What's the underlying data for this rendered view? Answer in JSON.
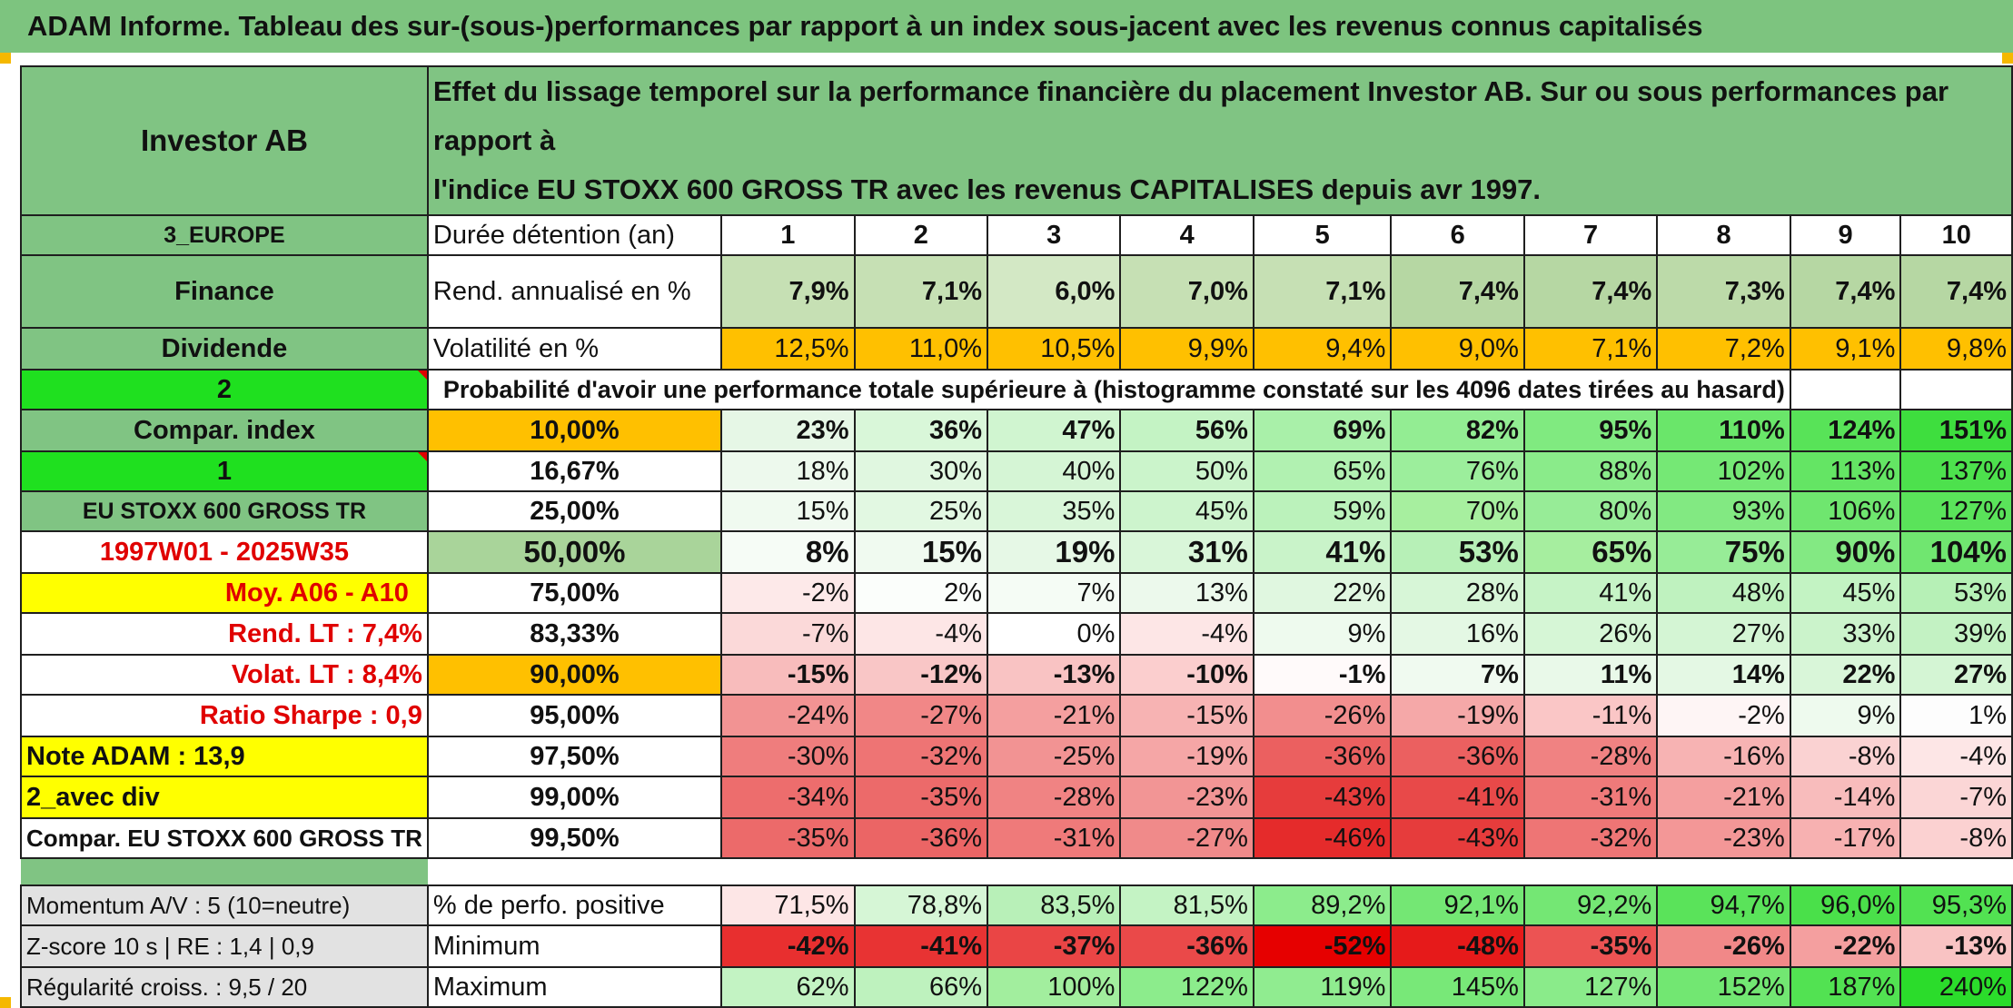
{
  "title": "ADAM Informe. Tableau des sur-(sous-)performances par rapport à un index sous-jacent avec les revenus connus capitalisés",
  "header": {
    "fund_name": "Investor AB",
    "description_line1": "Effet du lissage temporel sur la performance financière du placement Investor AB. Sur ou sous performances par rapport à",
    "description_line2": "l'indice EU STOXX 600 GROSS TR avec les revenus CAPITALISES depuis avr 1997."
  },
  "left_labels": {
    "region": "3_EUROPE",
    "sector": "Finance",
    "type": "Dividende",
    "sel1": "2",
    "compar_index": "Compar. index",
    "sel2": "1",
    "index_name": "EU STOXX 600 GROSS TR",
    "period": "1997W01 - 2025W35",
    "moy": "Moy. A06 - A10",
    "rend_lt": "Rend. LT :   7,4%",
    "volat_lt": "Volat. LT :   8,4%",
    "ratio_sharpe": "Ratio Sharpe :   0,9",
    "note_adam": "Note ADAM : 13,9",
    "avec_div": "2_avec div",
    "compar_full": "Compar. EU STOXX 600 GROSS TR",
    "momentum": "Momentum A/V : 5 (10=neutre)",
    "zscore": "Z-score 10 s | RE : 1,4 | 0,9",
    "regularite": "Régularité croiss. : 9,5 / 20"
  },
  "row_labels": {
    "duree": "Durée détention (an)",
    "rend": "Rend. annualisé en %",
    "volat": "Volatilité en %",
    "proba": "Probabilité d'avoir une performance totale supérieure à (histogramme constaté sur les 4096 dates tirées au hasard)",
    "pct_pos": "% de perfo. positive",
    "minimum": "Minimum",
    "maximum": "Maximum"
  },
  "years": [
    "1",
    "2",
    "3",
    "4",
    "5",
    "6",
    "7",
    "8",
    "9",
    "10"
  ],
  "rend": [
    "7,9%",
    "7,1%",
    "6,0%",
    "7,0%",
    "7,1%",
    "7,4%",
    "7,4%",
    "7,3%",
    "7,4%",
    "7,4%"
  ],
  "volat": [
    "12,5%",
    "11,0%",
    "10,5%",
    "9,9%",
    "9,4%",
    "9,0%",
    "7,1%",
    "7,2%",
    "9,1%",
    "9,8%"
  ],
  "probability_rows": [
    {
      "p": "10,00%",
      "values": [
        "23%",
        "36%",
        "47%",
        "56%",
        "69%",
        "82%",
        "95%",
        "110%",
        "124%",
        "151%"
      ]
    },
    {
      "p": "16,67%",
      "values": [
        "18%",
        "30%",
        "40%",
        "50%",
        "65%",
        "76%",
        "88%",
        "102%",
        "113%",
        "137%"
      ]
    },
    {
      "p": "25,00%",
      "values": [
        "15%",
        "25%",
        "35%",
        "45%",
        "59%",
        "70%",
        "80%",
        "93%",
        "106%",
        "127%"
      ]
    },
    {
      "p": "50,00%",
      "values": [
        "8%",
        "15%",
        "19%",
        "31%",
        "41%",
        "53%",
        "65%",
        "75%",
        "90%",
        "104%"
      ]
    },
    {
      "p": "75,00%",
      "values": [
        "-2%",
        "2%",
        "7%",
        "13%",
        "22%",
        "28%",
        "41%",
        "48%",
        "45%",
        "53%"
      ]
    },
    {
      "p": "83,33%",
      "values": [
        "-7%",
        "-4%",
        "0%",
        "-4%",
        "9%",
        "16%",
        "26%",
        "27%",
        "33%",
        "39%"
      ]
    },
    {
      "p": "90,00%",
      "values": [
        "-15%",
        "-12%",
        "-13%",
        "-10%",
        "-1%",
        "7%",
        "11%",
        "14%",
        "22%",
        "27%"
      ]
    },
    {
      "p": "95,00%",
      "values": [
        "-24%",
        "-27%",
        "-21%",
        "-15%",
        "-26%",
        "-19%",
        "-11%",
        "-2%",
        "9%",
        "1%"
      ]
    },
    {
      "p": "97,50%",
      "values": [
        "-30%",
        "-32%",
        "-25%",
        "-19%",
        "-36%",
        "-36%",
        "-28%",
        "-16%",
        "-8%",
        "-4%"
      ]
    },
    {
      "p": "99,00%",
      "values": [
        "-34%",
        "-35%",
        "-28%",
        "-23%",
        "-43%",
        "-41%",
        "-31%",
        "-21%",
        "-14%",
        "-7%"
      ]
    },
    {
      "p": "99,50%",
      "values": [
        "-35%",
        "-36%",
        "-31%",
        "-27%",
        "-46%",
        "-43%",
        "-32%",
        "-23%",
        "-17%",
        "-8%"
      ]
    }
  ],
  "pct_pos": [
    "71,5%",
    "78,8%",
    "83,5%",
    "81,5%",
    "89,2%",
    "92,1%",
    "92,2%",
    "94,7%",
    "96,0%",
    "95,3%"
  ],
  "minimum": [
    "-42%",
    "-41%",
    "-37%",
    "-36%",
    "-52%",
    "-48%",
    "-35%",
    "-26%",
    "-22%",
    "-13%"
  ],
  "maximum": [
    "62%",
    "66%",
    "100%",
    "122%",
    "119%",
    "145%",
    "127%",
    "152%",
    "187%",
    "240%"
  ],
  "colors": {
    "rend_cells": [
      "#c6e0b4",
      "#c6e0b4",
      "#d3e8c5",
      "#c6e0b4",
      "#c6e0b4",
      "#b6d7a3",
      "#b6d7a3",
      "#bcdaa9",
      "#b6d7a3",
      "#b6d7a3"
    ],
    "volat_cells": [
      "#ffc000",
      "#ffc000",
      "#ffc000",
      "#ffc000",
      "#ffc000",
      "#ffc000",
      "#ffc000",
      "#ffc000",
      "#ffc000",
      "#ffc000"
    ],
    "prob_label_cells": [
      "#ffc000",
      "#ffffff",
      "#ffffff",
      "#a9d49a",
      "#ffffff",
      "#ffffff",
      "#ffc000",
      "#ffffff",
      "#ffffff",
      "#ffffff",
      "#ffffff"
    ],
    "prob_cells": [
      [
        "#e6f7e6",
        "#d9f7d9",
        "#d0f5d0",
        "#c4f3c4",
        "#a9f0a9",
        "#93ed93",
        "#80ea80",
        "#6ae66a",
        "#58e358",
        "#3ede3e"
      ],
      [
        "#edf9ed",
        "#e0f7e0",
        "#d5f5d5",
        "#cbf4cb",
        "#b1f1b1",
        "#9cee9c",
        "#8aeb8a",
        "#75e875",
        "#64e564",
        "#4de14d"
      ],
      [
        "#f0faf0",
        "#e2f8e2",
        "#d9f6d9",
        "#cdf4cd",
        "#bbf2bb",
        "#a7ef9f",
        "#97ec97",
        "#82e982",
        "#6fe66f",
        "#5ae35a"
      ],
      [
        "#f6fcf6",
        "#f0faf0",
        "#e6f8e6",
        "#d9f6d9",
        "#c9f3c9",
        "#b7f0b7",
        "#a6ee9f",
        "#97ec97",
        "#83e983",
        "#70e670"
      ],
      [
        "#fde9e9",
        "#fbfefb",
        "#f5fcf5",
        "#ecf9ec",
        "#e0f7e0",
        "#d7f6d7",
        "#c6f3c6",
        "#bff2bf",
        "#c3f3c3",
        "#b6f0b6"
      ],
      [
        "#fbd9d9",
        "#fde6e6",
        "#ffffff",
        "#fde6e6",
        "#eefaee",
        "#e4f8e4",
        "#d6f6d6",
        "#d4f5d4",
        "#cbf3cb",
        "#c3f2c3"
      ],
      [
        "#f8bcbc",
        "#f9c6c6",
        "#f9c3c3",
        "#fbcece",
        "#fffafa",
        "#f0faf0",
        "#e9f9e9",
        "#e4f8e4",
        "#d9f6d9",
        "#d4f5d4"
      ],
      [
        "#f29393",
        "#f18787",
        "#f49f9f",
        "#f7b3b3",
        "#f28e8e",
        "#f5a8a8",
        "#fac6c6",
        "#fef5f5",
        "#eefaee",
        "#fdfdfd"
      ],
      [
        "#ef7d7d",
        "#ee7474",
        "#f29393",
        "#f5a6a6",
        "#eb6060",
        "#eb6060",
        "#f08282",
        "#f7b3b3",
        "#fad2d2",
        "#fde6e6"
      ],
      [
        "#ed6d6d",
        "#ec6a6a",
        "#f08383",
        "#f29595",
        "#e63c3c",
        "#e84949",
        "#ef7a7a",
        "#f49f9f",
        "#f8bcbc",
        "#fbd6d6"
      ],
      [
        "#ec6a6a",
        "#eb6565",
        "#ef7a7a",
        "#f08a8a",
        "#e52b2b",
        "#e63c3c",
        "#ee7575",
        "#f39797",
        "#f7b1b1",
        "#fbd1d1"
      ]
    ],
    "pct_pos_cells": [
      "#fde6e6",
      "#d6f6d6",
      "#b8f0b8",
      "#c4f3c4",
      "#8cec8c",
      "#74e774",
      "#74e774",
      "#5ae35a",
      "#4ae04a",
      "#52e252"
    ],
    "minimum_cells": [
      "#e82f2f",
      "#e83333",
      "#ea4545",
      "#ea4949",
      "#e60000",
      "#e61a1a",
      "#ec5353",
      "#f18888",
      "#f49f9f",
      "#f9c3c3"
    ],
    "maximum_cells": [
      "#c3f3c3",
      "#bef2be",
      "#a2ee9e",
      "#8cec8c",
      "#90ec90",
      "#78e878",
      "#8aeb8a",
      "#72e772",
      "#52e252",
      "#2bdc2b"
    ]
  }
}
